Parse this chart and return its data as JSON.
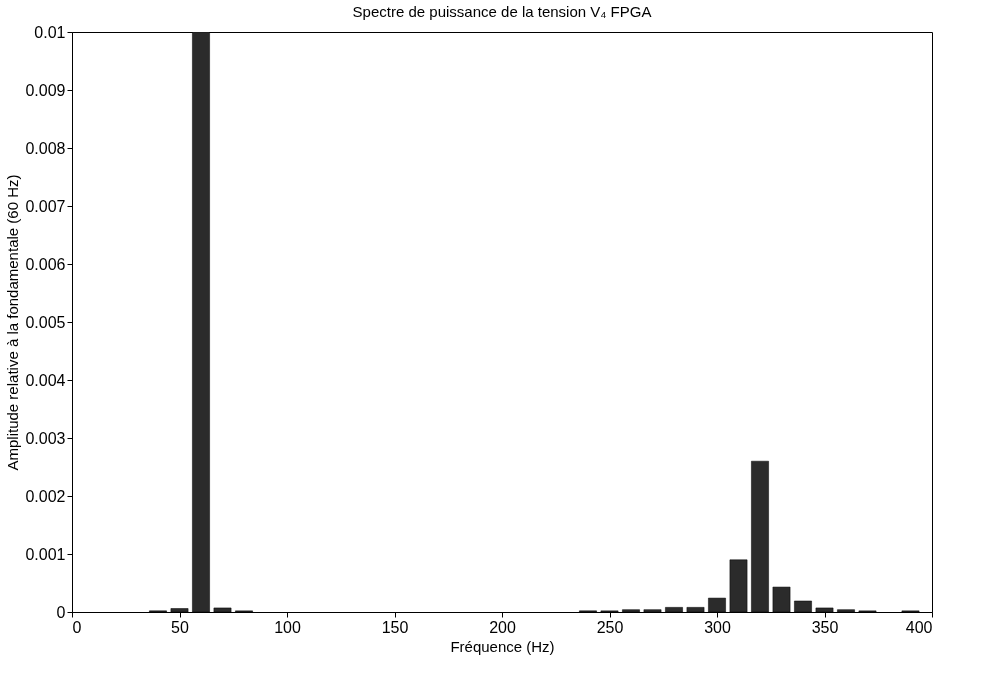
{
  "chart_data": {
    "type": "bar",
    "title": "Spectre de puissance de la tension V₄ FPGA",
    "xlabel": "Fréquence (Hz)",
    "ylabel": "Amplitude relative à la fondamentale (60 Hz)",
    "x": [
      40,
      50,
      60,
      70,
      80,
      240,
      250,
      260,
      270,
      280,
      290,
      300,
      310,
      320,
      330,
      340,
      350,
      360,
      370,
      390
    ],
    "series": [
      {
        "color": "#2b2b2b",
        "values": [
          2e-05,
          6e-05,
          0.01,
          7e-05,
          2e-05,
          2e-05,
          2e-05,
          4e-05,
          4e-05,
          8e-05,
          8e-05,
          0.00024,
          0.0009,
          0.0026,
          0.00043,
          0.00019,
          7e-05,
          4e-05,
          2e-05,
          2e-05
        ]
      }
    ],
    "xlim": [
      0,
      400
    ],
    "xticks": [
      0,
      50,
      100,
      150,
      200,
      250,
      300,
      350,
      400
    ],
    "ylim": [
      0,
      0.01
    ],
    "yticks": [
      0,
      0.001,
      0.002,
      0.003,
      0.004,
      0.005,
      0.006,
      0.007,
      0.008,
      0.009,
      0.01
    ],
    "grid": false
  }
}
